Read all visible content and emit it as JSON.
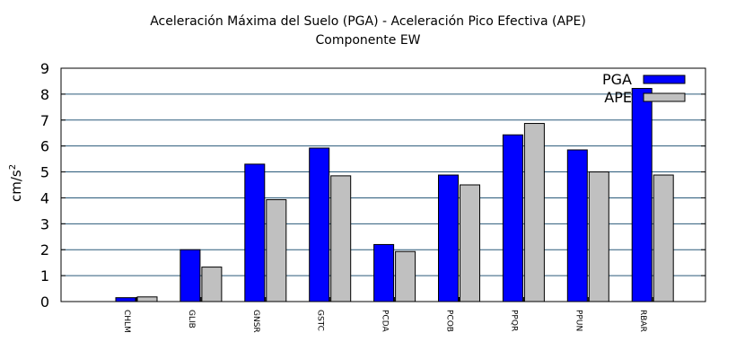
{
  "chart_data": {
    "type": "bar",
    "title": "Aceleración Máxima del Suelo (PGA) -  Aceleración Pico Efectiva (APE)",
    "subtitle": "Componente EW",
    "ylabel": "cm/s",
    "ylabel_exponent": "2",
    "ylim": [
      0,
      9
    ],
    "yticks": [
      "0",
      "1",
      "2",
      "3",
      "4",
      "5",
      "6",
      "7",
      "8",
      "9"
    ],
    "categories": [
      "CHLM",
      "GLIB",
      "GNSR",
      "GSTC",
      "PCDA",
      "PCOB",
      "PPQR",
      "PPUN",
      "RBAR"
    ],
    "series": [
      {
        "name": "PGA",
        "color": "#0000ff",
        "values": [
          0.15,
          2.0,
          5.3,
          5.92,
          2.2,
          4.88,
          6.43,
          5.85,
          8.22
        ]
      },
      {
        "name": "APE",
        "color": "#c0c0c0",
        "values": [
          0.18,
          1.33,
          3.93,
          4.85,
          1.93,
          4.5,
          6.87,
          5.0,
          4.88
        ]
      }
    ],
    "grid": true,
    "legend_position": "top-right"
  }
}
